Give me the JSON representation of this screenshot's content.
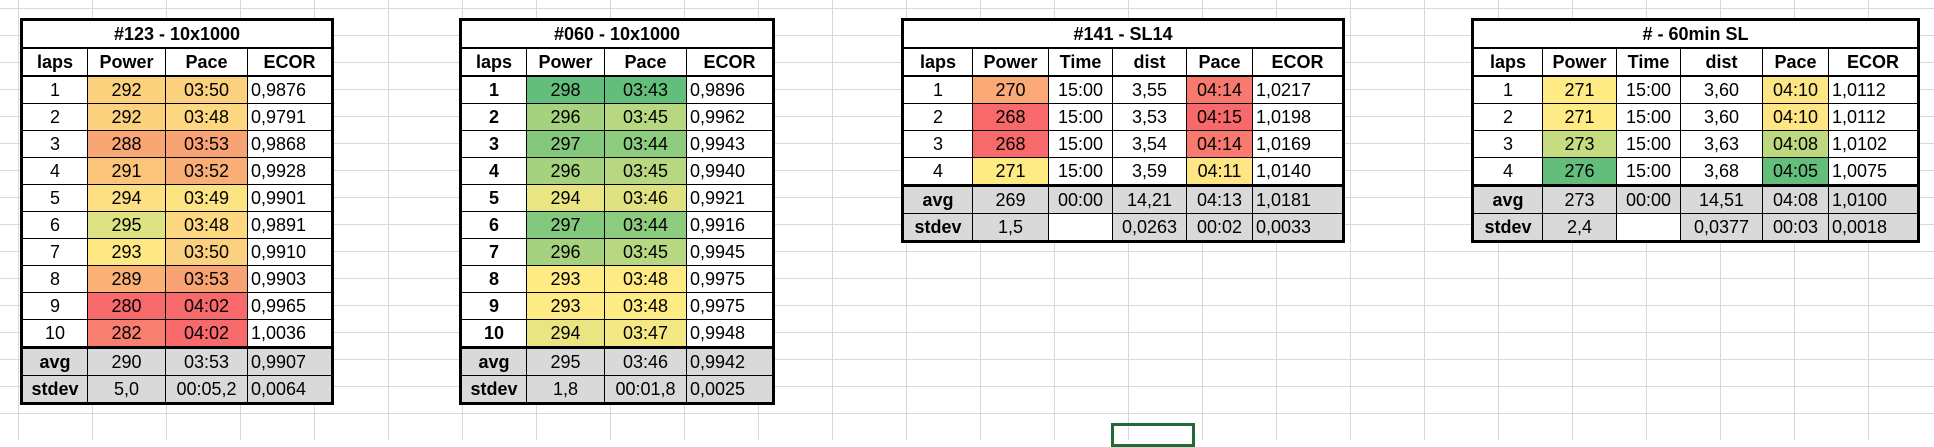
{
  "sheet": {
    "tables": [
      {
        "title": "#123 - 10x1000",
        "headers": [
          "laps",
          "Power",
          "Pace",
          "ECOR"
        ],
        "rows": [
          [
            "1",
            "292",
            "03:50",
            "0,9876"
          ],
          [
            "2",
            "292",
            "03:48",
            "0,9791"
          ],
          [
            "3",
            "288",
            "03:53",
            "0,9868"
          ],
          [
            "4",
            "291",
            "03:52",
            "0,9928"
          ],
          [
            "5",
            "294",
            "03:49",
            "0,9901"
          ],
          [
            "6",
            "295",
            "03:48",
            "0,9891"
          ],
          [
            "7",
            "293",
            "03:50",
            "0,9910"
          ],
          [
            "8",
            "289",
            "03:53",
            "0,9903"
          ],
          [
            "9",
            "280",
            "04:02",
            "0,9965"
          ],
          [
            "10",
            "282",
            "04:02",
            "1,0036"
          ]
        ],
        "avg": [
          "avg",
          "290",
          "03:53",
          "0,9907"
        ],
        "stdev": [
          "stdev",
          "5,0",
          "00:05,2",
          "0,0064"
        ],
        "fills": [
          [
            "",
            "#fbd17e",
            "#fbd07e",
            ""
          ],
          [
            "",
            "#fbd17e",
            "#fdd880",
            ""
          ],
          [
            "",
            "#f8a674",
            "#f8a373",
            ""
          ],
          [
            "",
            "#fac47b",
            "#f9ae76",
            ""
          ],
          [
            "",
            "#fde083",
            "#fde483",
            ""
          ],
          [
            "",
            "#dde283",
            "#fdd880",
            ""
          ],
          [
            "",
            "#fee883",
            "#fbd07e",
            ""
          ],
          [
            "",
            "#f9b176",
            "#f8a373",
            ""
          ],
          [
            "",
            "#f8696b",
            "#f8696b",
            ""
          ],
          [
            "",
            "#f87f6f",
            "#f8696b",
            ""
          ]
        ]
      },
      {
        "title": "#060 - 10x1000",
        "headers": [
          "laps",
          "Power",
          "Pace",
          "ECOR"
        ],
        "rows": [
          [
            "1",
            "298",
            "03:43",
            "0,9896"
          ],
          [
            "2",
            "296",
            "03:45",
            "0,9962"
          ],
          [
            "3",
            "297",
            "03:44",
            "0,9943"
          ],
          [
            "4",
            "296",
            "03:45",
            "0,9940"
          ],
          [
            "5",
            "294",
            "03:46",
            "0,9921"
          ],
          [
            "6",
            "297",
            "03:44",
            "0,9916"
          ],
          [
            "7",
            "296",
            "03:45",
            "0,9945"
          ],
          [
            "8",
            "293",
            "03:48",
            "0,9975"
          ],
          [
            "9",
            "293",
            "03:48",
            "0,9975"
          ],
          [
            "10",
            "294",
            "03:47",
            "0,9948"
          ]
        ],
        "avg": [
          "avg",
          "295",
          "03:46",
          "0,9942"
        ],
        "stdev": [
          "stdev",
          "1,8",
          "00:01,8",
          "0,0025"
        ],
        "fills": [
          [
            "",
            "#63be7b",
            "#63be7b",
            ""
          ],
          [
            "",
            "#a6d27f",
            "#b7d780",
            ""
          ],
          [
            "",
            "#84c87d",
            "#8dcb7e",
            ""
          ],
          [
            "",
            "#a6d27f",
            "#b7d780",
            ""
          ],
          [
            "",
            "#e9e582",
            "#e0e282",
            ""
          ],
          [
            "",
            "#84c87d",
            "#8dcb7e",
            ""
          ],
          [
            "",
            "#a6d27f",
            "#b7d780",
            ""
          ],
          [
            "",
            "#ffeb84",
            "#ffeb84",
            ""
          ],
          [
            "",
            "#ffeb84",
            "#ffeb84",
            ""
          ],
          [
            "",
            "#e9e582",
            "#f4e884",
            ""
          ]
        ]
      },
      {
        "title": "#141 - SL14",
        "headers": [
          "laps",
          "Power",
          "Time",
          "dist",
          "Pace",
          "ECOR"
        ],
        "rows": [
          [
            "1",
            "270",
            "15:00",
            "3,55",
            "04:14",
            "1,0217"
          ],
          [
            "2",
            "268",
            "15:00",
            "3,53",
            "04:15",
            "1,0198"
          ],
          [
            "3",
            "268",
            "15:00",
            "3,54",
            "04:14",
            "1,0169"
          ],
          [
            "4",
            "271",
            "15:00",
            "3,59",
            "04:11",
            "1,0140"
          ]
        ],
        "avg": [
          "avg",
          "269",
          "00:00",
          "14,21",
          "04:13",
          "1,0181"
        ],
        "stdev": [
          "stdev",
          "1,5",
          "",
          "0,0263",
          "00:02",
          "0,0033"
        ],
        "fills": [
          [
            "",
            "#fbaa77",
            "",
            "",
            "#f87a6e",
            ""
          ],
          [
            "",
            "#f8696b",
            "",
            "",
            "#f8696b",
            ""
          ],
          [
            "",
            "#f8696b",
            "",
            "",
            "#f87a6e",
            ""
          ],
          [
            "",
            "#ffeb84",
            "",
            "",
            "#fde683",
            ""
          ]
        ]
      },
      {
        "title": "# - 60min SL",
        "headers": [
          "laps",
          "Power",
          "Time",
          "dist",
          "Pace",
          "ECOR"
        ],
        "rows": [
          [
            "1",
            "271",
            "15:00",
            "3,60",
            "04:10",
            "1,0112"
          ],
          [
            "2",
            "271",
            "15:00",
            "3,60",
            "04:10",
            "1,0112"
          ],
          [
            "3",
            "273",
            "15:00",
            "3,63",
            "04:08",
            "1,0102"
          ],
          [
            "4",
            "276",
            "15:00",
            "3,68",
            "04:05",
            "1,0075"
          ]
        ],
        "avg": [
          "avg",
          "273",
          "00:00",
          "14,51",
          "04:08",
          "1,0100"
        ],
        "stdev": [
          "stdev",
          "2,4",
          "",
          "0,0377",
          "00:03",
          "0,0018"
        ],
        "fills": [
          [
            "",
            "#ffeb84",
            "",
            "",
            "#fde683",
            ""
          ],
          [
            "",
            "#ffeb84",
            "",
            "",
            "#fde683",
            ""
          ],
          [
            "",
            "#c5dc80",
            "",
            "",
            "#bcd980",
            ""
          ],
          [
            "",
            "#63be7b",
            "",
            "",
            "#63be7b",
            ""
          ]
        ]
      }
    ]
  }
}
